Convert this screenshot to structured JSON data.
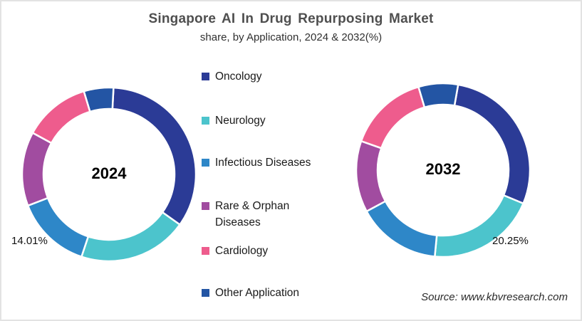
{
  "title": "Singapore AI In Drug Repurposing Market",
  "subtitle": "share, by Application, 2024 & 2032(%)",
  "source": "Source: www.kbvresearch.com",
  "legend": {
    "items": [
      {
        "label": "Oncology",
        "color": "#2B3B96"
      },
      {
        "label": "Neurology",
        "color": "#4CC4CC"
      },
      {
        "label": "Infectious Diseases",
        "color": "#2E87C8"
      },
      {
        "label": "Rare & Orphan Diseases",
        "color": "#A14CA0"
      },
      {
        "label": "Cardiology",
        "color": "#EE5C8D"
      },
      {
        "label": "Other Application",
        "color": "#2355A4"
      }
    ]
  },
  "chart_data": {
    "type": "pie",
    "subtype": "donut",
    "title": "Singapore AI In Drug Repurposing Market",
    "subtitle": "share, by Application, 2024 & 2032(%)",
    "unit": "%",
    "legend_position": "center-between-charts",
    "categories": [
      "Oncology",
      "Neurology",
      "Infectious Diseases",
      "Rare & Orphan Diseases",
      "Cardiology",
      "Other Application"
    ],
    "colors": [
      "#2B3B96",
      "#4CC4CC",
      "#2E87C8",
      "#A14CA0",
      "#EE5C8D",
      "#2355A4"
    ],
    "series": [
      {
        "name": "2024",
        "center_label": "2024",
        "start_angle_deg": 3,
        "values": [
          34.0,
          20.3,
          14.01,
          13.8,
          12.4,
          5.5
        ],
        "data_label": {
          "category": "Infectious Diseases",
          "text": "14.01%"
        }
      },
      {
        "name": "2032",
        "center_label": "2032",
        "start_angle_deg": 10,
        "values": [
          28.5,
          20.25,
          15.6,
          13.3,
          15.0,
          7.35
        ],
        "data_label": {
          "category": "Neurology",
          "text": "20.25%"
        }
      }
    ]
  }
}
